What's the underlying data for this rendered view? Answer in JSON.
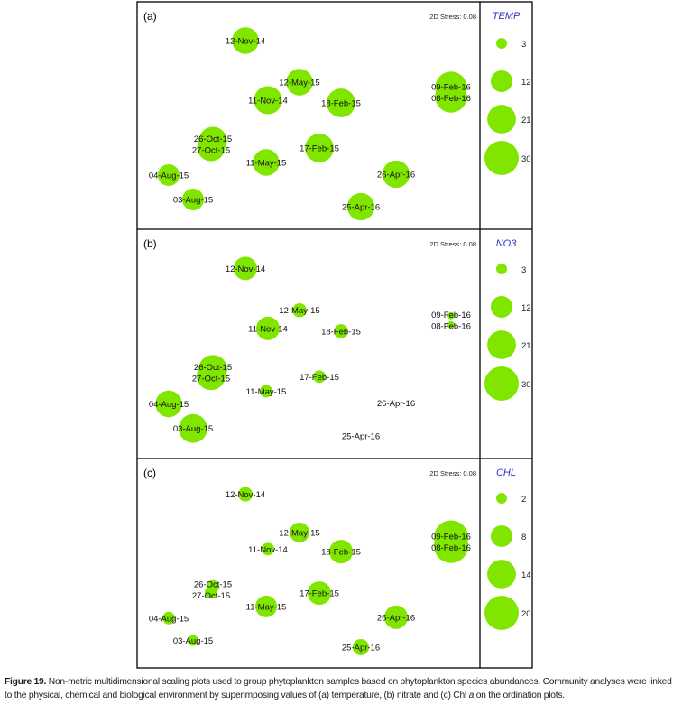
{
  "colors": {
    "bubble": "#80E600",
    "legend_title": "#3030C0",
    "frame": "#000000"
  },
  "chart_data": [
    {
      "type": "scatter",
      "subtype": "bubble (NMDS ordination)",
      "panel_label": "(a)",
      "stress_label": "2D Stress: 0.08",
      "legend_title": "TEMP",
      "legend_values": [
        "3",
        "12",
        "21",
        "30"
      ],
      "legend_placement": "right",
      "grid": false,
      "axes_shown": false,
      "xlim": [
        -1.9,
        1.9
      ],
      "ylim": [
        -1.26,
        1.26
      ],
      "points": [
        {
          "label": "12-Nov-14",
          "x": -0.7,
          "y": 0.83,
          "value": 18
        },
        {
          "label": "12-May-15",
          "x": -0.1,
          "y": 0.37,
          "value": 18
        },
        {
          "label": "11-Nov-14",
          "x": -0.45,
          "y": 0.17,
          "value": 20
        },
        {
          "label": "18-Feb-15",
          "x": 0.36,
          "y": 0.14,
          "value": 21
        },
        {
          "label": "09-Feb-16",
          "x": 1.58,
          "y": 0.31,
          "value": 26
        },
        {
          "label": "08-Feb-16",
          "x": 1.58,
          "y": 0.21,
          "value": 26
        },
        {
          "label": "26-Oct-15",
          "x": -1.06,
          "y": -0.28,
          "value": 20
        },
        {
          "label": "27-Oct-15",
          "x": -1.08,
          "y": -0.35,
          "value": 20
        },
        {
          "label": "17-Feb-15",
          "x": 0.12,
          "y": -0.36,
          "value": 21
        },
        {
          "label": "11-May-15",
          "x": -0.47,
          "y": -0.52,
          "value": 18
        },
        {
          "label": "04-Aug-15",
          "x": -1.55,
          "y": -0.66,
          "value": 12
        },
        {
          "label": "26-Apr-16",
          "x": 0.97,
          "y": -0.65,
          "value": 19
        },
        {
          "label": "03-Aug-15",
          "x": -1.28,
          "y": -0.93,
          "value": 12
        },
        {
          "label": "25-Apr-16",
          "x": 0.58,
          "y": -1.01,
          "value": 19
        }
      ]
    },
    {
      "type": "scatter",
      "subtype": "bubble (NMDS ordination)",
      "panel_label": "(b)",
      "stress_label": "2D Stress: 0.08",
      "legend_title": "NO3",
      "legend_values": [
        "3",
        "12",
        "21",
        "30"
      ],
      "legend_placement": "right",
      "grid": false,
      "axes_shown": false,
      "xlim": [
        -1.9,
        1.9
      ],
      "ylim": [
        -1.26,
        1.26
      ],
      "points": [
        {
          "label": "12-Nov-14",
          "x": -0.7,
          "y": 0.83,
          "value": 14
        },
        {
          "label": "12-May-15",
          "x": -0.1,
          "y": 0.37,
          "value": 5
        },
        {
          "label": "11-Nov-14",
          "x": -0.45,
          "y": 0.17,
          "value": 14
        },
        {
          "label": "18-Feb-15",
          "x": 0.36,
          "y": 0.14,
          "value": 5
        },
        {
          "label": "09-Feb-16",
          "x": 1.58,
          "y": 0.31,
          "value": 1.3
        },
        {
          "label": "08-Feb-16",
          "x": 1.58,
          "y": 0.21,
          "value": 1.3
        },
        {
          "label": "26-Oct-15",
          "x": -1.06,
          "y": -0.28,
          "value": 21
        },
        {
          "label": "27-Oct-15",
          "x": -1.08,
          "y": -0.35,
          "value": 21
        },
        {
          "label": "17-Feb-15",
          "x": 0.12,
          "y": -0.36,
          "value": 4
        },
        {
          "label": "11-May-15",
          "x": -0.47,
          "y": -0.52,
          "value": 4
        },
        {
          "label": "04-Aug-15",
          "x": -1.55,
          "y": -0.66,
          "value": 18
        },
        {
          "label": "26-Apr-16",
          "x": 0.97,
          "y": -0.65,
          "value": 0.1
        },
        {
          "label": "03-Aug-15",
          "x": -1.28,
          "y": -0.93,
          "value": 21
        },
        {
          "label": "25-Apr-16",
          "x": 0.58,
          "y": -1.01,
          "value": 0.1
        }
      ]
    },
    {
      "type": "scatter",
      "subtype": "bubble (NMDS ordination)",
      "panel_label": "(c)",
      "stress_label": "2D Stress: 0.08",
      "legend_title": "CHL",
      "legend_values": [
        "2",
        "8",
        "14",
        "20"
      ],
      "legend_placement": "right",
      "grid": false,
      "axes_shown": false,
      "xlim": [
        -1.9,
        1.9
      ],
      "ylim": [
        -1.26,
        1.26
      ],
      "points": [
        {
          "label": "12-Nov-14",
          "x": -0.7,
          "y": 0.83,
          "value": 3.6
        },
        {
          "label": "12-May-15",
          "x": -0.1,
          "y": 0.37,
          "value": 6.7
        },
        {
          "label": "11-Nov-14",
          "x": -0.45,
          "y": 0.17,
          "value": 2.7
        },
        {
          "label": "18-Feb-15",
          "x": 0.36,
          "y": 0.14,
          "value": 9.4
        },
        {
          "label": "09-Feb-16",
          "x": 1.58,
          "y": 0.31,
          "value": 20
        },
        {
          "label": "08-Feb-16",
          "x": 1.58,
          "y": 0.21,
          "value": 20
        },
        {
          "label": "26-Oct-15",
          "x": -1.06,
          "y": -0.28,
          "value": 2.7
        },
        {
          "label": "27-Oct-15",
          "x": -1.08,
          "y": -0.35,
          "value": 2.7
        },
        {
          "label": "17-Feb-15",
          "x": 0.12,
          "y": -0.36,
          "value": 9.4
        },
        {
          "label": "11-May-15",
          "x": -0.47,
          "y": -0.52,
          "value": 8
        },
        {
          "label": "04-Aug-15",
          "x": -1.55,
          "y": -0.66,
          "value": 2.7
        },
        {
          "label": "26-Apr-16",
          "x": 0.97,
          "y": -0.65,
          "value": 9.4
        },
        {
          "label": "03-Aug-15",
          "x": -1.28,
          "y": -0.93,
          "value": 2
        },
        {
          "label": "25-Apr-16",
          "x": 0.58,
          "y": -1.01,
          "value": 4.5
        }
      ]
    }
  ],
  "caption": {
    "label": "Figure 19.",
    "text": " Non-metric multidimensional scaling plots used to group phytoplankton samples based on phytoplankton species abundances. Community analyses were linked to the physical, chemical and biological environment by superimposing values of (a) temperature, (b) nitrate and (c) Chl ",
    "italic": "a",
    "tail": " on the ordination plots."
  }
}
